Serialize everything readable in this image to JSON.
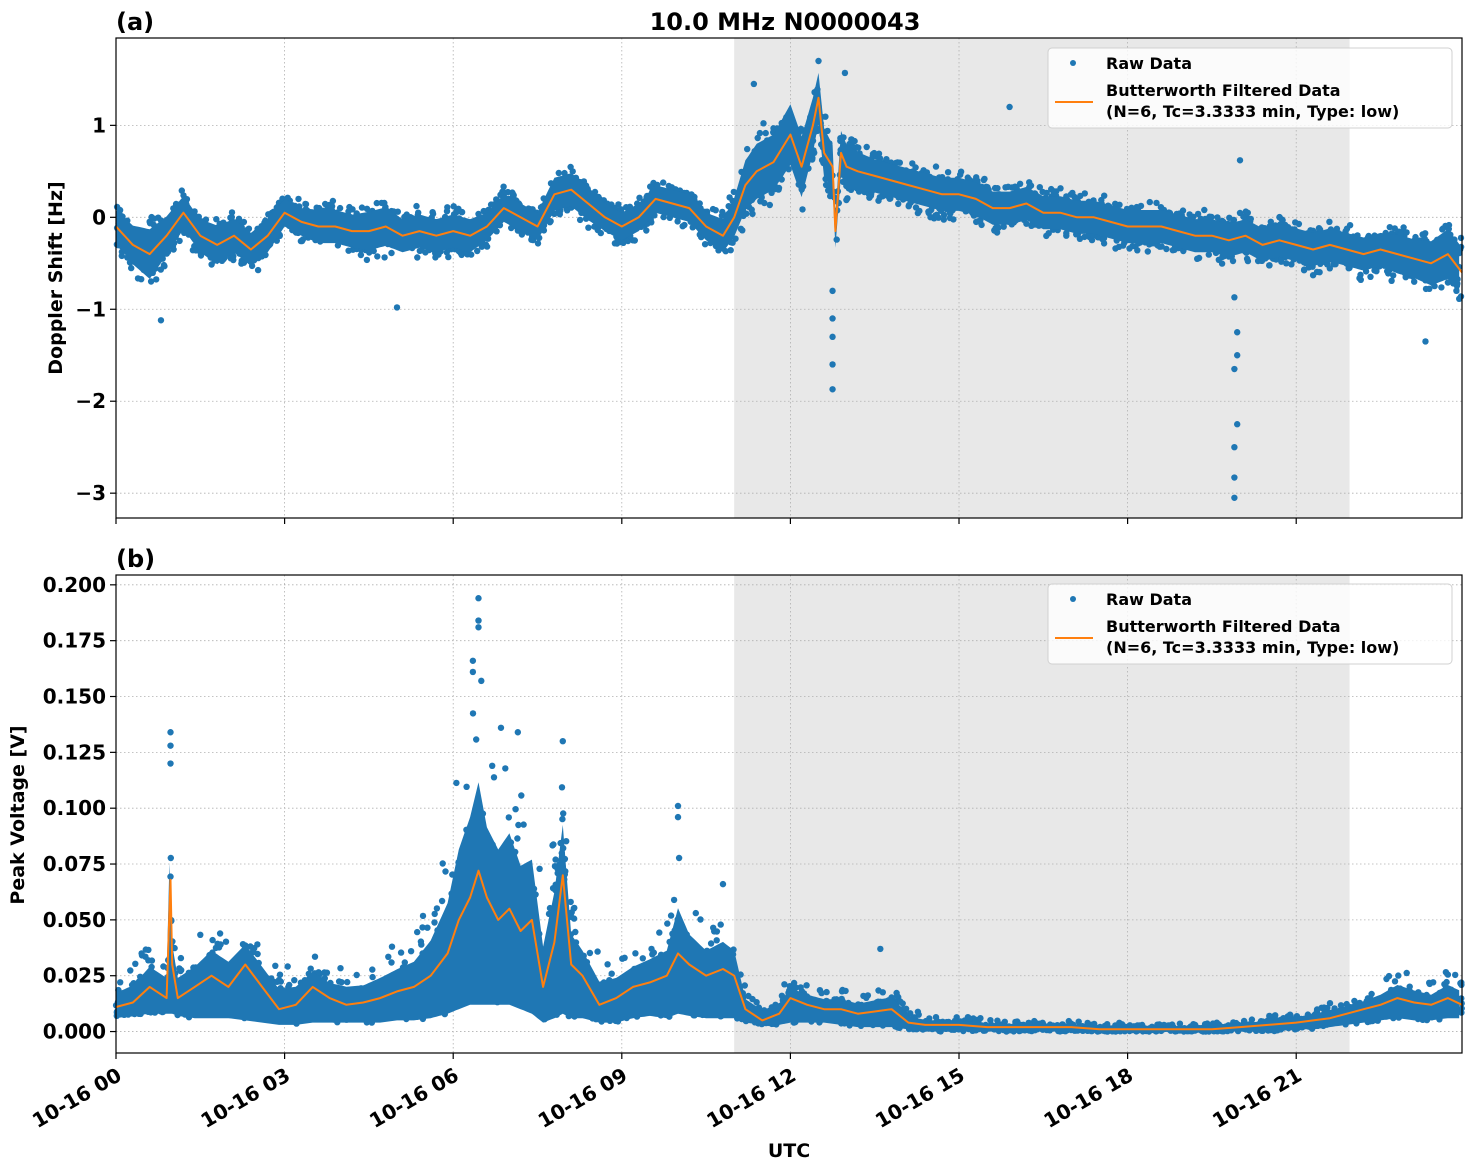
{
  "figure": {
    "title": "10.0 MHz N0000043",
    "xlabel": "UTC"
  },
  "colors": {
    "raw": "#1f77b4",
    "filtered": "#ff7f0e",
    "shade": "#e8e8e8",
    "grid": "#b0b0b0"
  },
  "chart_data": [
    {
      "type": "scatter",
      "panel_label": "(a)",
      "title": "10.0 MHz N0000043",
      "ylabel": "Doppler Shift [Hz]",
      "xlabel": "",
      "xlim_hours": [
        0,
        23.95
      ],
      "ylim": [
        -3.27,
        1.95
      ],
      "yticks": [
        1,
        0,
        -1,
        -2,
        -3
      ],
      "ytick_labels": [
        "1",
        "0",
        "−1",
        "−2",
        "−3"
      ],
      "xticks_hours": [
        0,
        3,
        6,
        9,
        12,
        15,
        18,
        21
      ],
      "grid": true,
      "shaded_span_hours": [
        11.0,
        21.95
      ],
      "legend": {
        "position": "top-right",
        "entries": [
          "Raw Data",
          "Butterworth Filtered Data",
          "(N=6, Tc=3.3333 min, Type: low)"
        ]
      },
      "series": [
        {
          "name": "Butterworth Filtered Data",
          "kind": "line",
          "x_hours": [
            0,
            0.3,
            0.6,
            0.9,
            1.2,
            1.5,
            1.8,
            2.1,
            2.4,
            2.7,
            3.0,
            3.3,
            3.6,
            3.9,
            4.2,
            4.5,
            4.8,
            5.1,
            5.4,
            5.7,
            6.0,
            6.3,
            6.6,
            6.9,
            7.2,
            7.5,
            7.8,
            8.1,
            8.4,
            8.7,
            9.0,
            9.3,
            9.6,
            9.9,
            10.2,
            10.5,
            10.8,
            11.0,
            11.2,
            11.4,
            11.7,
            12.0,
            12.2,
            12.4,
            12.5,
            12.6,
            12.75,
            12.8,
            12.9,
            13.0,
            13.2,
            13.5,
            13.8,
            14.1,
            14.4,
            14.7,
            15.0,
            15.3,
            15.6,
            15.9,
            16.2,
            16.5,
            16.8,
            17.1,
            17.4,
            17.7,
            18.0,
            18.3,
            18.6,
            18.9,
            19.2,
            19.5,
            19.8,
            20.1,
            20.4,
            20.7,
            21.0,
            21.3,
            21.6,
            21.9,
            22.2,
            22.5,
            22.8,
            23.1,
            23.4,
            23.7,
            23.95
          ],
          "y": [
            -0.1,
            -0.3,
            -0.4,
            -0.2,
            0.05,
            -0.2,
            -0.3,
            -0.2,
            -0.35,
            -0.2,
            0.05,
            -0.05,
            -0.1,
            -0.1,
            -0.15,
            -0.15,
            -0.1,
            -0.2,
            -0.15,
            -0.2,
            -0.15,
            -0.2,
            -0.1,
            0.1,
            0.0,
            -0.1,
            0.25,
            0.3,
            0.15,
            0.0,
            -0.1,
            0.0,
            0.2,
            0.15,
            0.1,
            -0.1,
            -0.2,
            0.0,
            0.35,
            0.5,
            0.6,
            0.9,
            0.55,
            1.0,
            1.3,
            0.7,
            0.55,
            -0.15,
            0.7,
            0.55,
            0.5,
            0.45,
            0.4,
            0.35,
            0.3,
            0.25,
            0.25,
            0.2,
            0.1,
            0.1,
            0.15,
            0.05,
            0.05,
            0.0,
            0.0,
            -0.05,
            -0.1,
            -0.1,
            -0.1,
            -0.15,
            -0.2,
            -0.2,
            -0.25,
            -0.2,
            -0.3,
            -0.25,
            -0.3,
            -0.35,
            -0.3,
            -0.35,
            -0.4,
            -0.35,
            -0.4,
            -0.45,
            -0.5,
            -0.4,
            -0.6
          ]
        },
        {
          "name": "Raw Data",
          "kind": "scatter",
          "band_halfwidth": [
            0.3,
            0.35,
            0.45,
            0.35,
            0.3,
            0.3,
            0.35,
            0.3,
            0.3,
            0.3,
            0.25,
            0.25,
            0.3,
            0.3,
            0.3,
            0.35,
            0.35,
            0.3,
            0.3,
            0.3,
            0.3,
            0.3,
            0.25,
            0.25,
            0.25,
            0.25,
            0.3,
            0.3,
            0.3,
            0.25,
            0.25,
            0.25,
            0.25,
            0.25,
            0.25,
            0.25,
            0.3,
            0.35,
            0.45,
            0.5,
            0.5,
            0.55,
            0.55,
            0.5,
            0.45,
            0.45,
            0.4,
            0.3,
            0.4,
            0.4,
            0.35,
            0.3,
            0.3,
            0.3,
            0.3,
            0.3,
            0.3,
            0.3,
            0.3,
            0.3,
            0.3,
            0.3,
            0.3,
            0.3,
            0.3,
            0.3,
            0.3,
            0.3,
            0.3,
            0.3,
            0.3,
            0.3,
            0.3,
            0.3,
            0.3,
            0.3,
            0.3,
            0.3,
            0.3,
            0.3,
            0.3,
            0.3,
            0.35,
            0.35,
            0.4,
            0.45,
            0.45
          ],
          "outliers": [
            {
              "x_hours": 12.75,
              "y": -1.87
            },
            {
              "x_hours": 12.75,
              "y": -1.6
            },
            {
              "x_hours": 12.75,
              "y": -1.3
            },
            {
              "x_hours": 12.75,
              "y": -1.1
            },
            {
              "x_hours": 12.75,
              "y": -0.8
            },
            {
              "x_hours": 12.5,
              "y": 1.7
            },
            {
              "x_hours": 11.35,
              "y": 1.45
            },
            {
              "x_hours": 12.97,
              "y": 1.57
            },
            {
              "x_hours": 15.9,
              "y": 1.2
            },
            {
              "x_hours": 19.9,
              "y": -3.05
            },
            {
              "x_hours": 19.9,
              "y": -2.83
            },
            {
              "x_hours": 19.9,
              "y": -2.5
            },
            {
              "x_hours": 19.95,
              "y": -2.25
            },
            {
              "x_hours": 19.9,
              "y": -1.65
            },
            {
              "x_hours": 19.95,
              "y": -1.5
            },
            {
              "x_hours": 19.95,
              "y": -1.25
            },
            {
              "x_hours": 19.9,
              "y": -0.87
            },
            {
              "x_hours": 20.0,
              "y": 0.62
            },
            {
              "x_hours": 23.3,
              "y": -1.35
            },
            {
              "x_hours": 5.0,
              "y": -0.98
            },
            {
              "x_hours": 0.8,
              "y": -1.12
            }
          ]
        }
      ]
    },
    {
      "type": "scatter",
      "panel_label": "(b)",
      "title": "",
      "ylabel": "Peak Voltage [V]",
      "xlabel": "UTC",
      "xlim_hours": [
        0,
        23.95
      ],
      "ylim": [
        -0.0096,
        0.2044
      ],
      "yticks": [
        0.2,
        0.175,
        0.15,
        0.125,
        0.1,
        0.075,
        0.05,
        0.025,
        0.0
      ],
      "ytick_labels": [
        "0.200",
        "0.175",
        "0.150",
        "0.125",
        "0.100",
        "0.075",
        "0.050",
        "0.025",
        "0.000"
      ],
      "xticks_hours": [
        0,
        3,
        6,
        9,
        12,
        15,
        18,
        21
      ],
      "xtick_labels": [
        "10-16 00",
        "10-16 03",
        "10-16 06",
        "10-16 09",
        "10-16 12",
        "10-16 15",
        "10-16 18",
        "10-16 21"
      ],
      "grid": true,
      "shaded_span_hours": [
        11.0,
        21.95
      ],
      "legend": {
        "position": "top-right",
        "entries": [
          "Raw Data",
          "Butterworth Filtered Data",
          "(N=6, Tc=3.3333 min, Type: low)"
        ]
      },
      "series": [
        {
          "name": "Butterworth Filtered Data",
          "kind": "line",
          "x_hours": [
            0,
            0.3,
            0.6,
            0.9,
            0.97,
            1.0,
            1.1,
            1.4,
            1.7,
            2.0,
            2.3,
            2.6,
            2.9,
            3.2,
            3.5,
            3.8,
            4.1,
            4.4,
            4.7,
            5.0,
            5.3,
            5.6,
            5.9,
            6.1,
            6.3,
            6.45,
            6.6,
            6.8,
            7.0,
            7.2,
            7.4,
            7.6,
            7.8,
            7.95,
            8.1,
            8.3,
            8.6,
            8.9,
            9.2,
            9.5,
            9.8,
            10.0,
            10.2,
            10.5,
            10.8,
            11.0,
            11.2,
            11.5,
            11.8,
            12.0,
            12.3,
            12.6,
            12.9,
            13.2,
            13.5,
            13.8,
            14.1,
            14.4,
            14.7,
            15.0,
            15.5,
            16.0,
            16.5,
            17.0,
            17.5,
            18.0,
            18.5,
            19.0,
            19.5,
            20.0,
            20.5,
            21.0,
            21.3,
            21.6,
            21.9,
            22.2,
            22.5,
            22.8,
            23.1,
            23.4,
            23.7,
            23.95
          ],
          "y": [
            0.011,
            0.013,
            0.02,
            0.015,
            0.068,
            0.03,
            0.015,
            0.02,
            0.025,
            0.02,
            0.03,
            0.02,
            0.01,
            0.012,
            0.02,
            0.015,
            0.012,
            0.013,
            0.015,
            0.018,
            0.02,
            0.025,
            0.035,
            0.05,
            0.06,
            0.072,
            0.06,
            0.05,
            0.055,
            0.045,
            0.05,
            0.02,
            0.04,
            0.07,
            0.03,
            0.025,
            0.012,
            0.015,
            0.02,
            0.022,
            0.025,
            0.035,
            0.03,
            0.025,
            0.028,
            0.025,
            0.01,
            0.005,
            0.008,
            0.015,
            0.012,
            0.01,
            0.01,
            0.008,
            0.009,
            0.01,
            0.004,
            0.003,
            0.003,
            0.003,
            0.002,
            0.002,
            0.002,
            0.002,
            0.001,
            0.001,
            0.001,
            0.001,
            0.001,
            0.002,
            0.003,
            0.004,
            0.005,
            0.006,
            0.008,
            0.01,
            0.012,
            0.015,
            0.013,
            0.012,
            0.015,
            0.012
          ],
          "band_upper": [
            0.025,
            0.03,
            0.04,
            0.035,
            0.13,
            0.05,
            0.035,
            0.04,
            0.05,
            0.045,
            0.05,
            0.04,
            0.03,
            0.03,
            0.035,
            0.03,
            0.03,
            0.03,
            0.035,
            0.04,
            0.045,
            0.06,
            0.085,
            0.12,
            0.14,
            0.16,
            0.13,
            0.12,
            0.13,
            0.11,
            0.11,
            0.06,
            0.09,
            0.12,
            0.06,
            0.05,
            0.035,
            0.035,
            0.04,
            0.045,
            0.05,
            0.08,
            0.06,
            0.05,
            0.055,
            0.05,
            0.02,
            0.015,
            0.018,
            0.025,
            0.022,
            0.02,
            0.02,
            0.018,
            0.02,
            0.022,
            0.01,
            0.008,
            0.007,
            0.007,
            0.006,
            0.005,
            0.005,
            0.005,
            0.004,
            0.004,
            0.004,
            0.004,
            0.004,
            0.005,
            0.007,
            0.009,
            0.012,
            0.013,
            0.016,
            0.018,
            0.022,
            0.028,
            0.025,
            0.022,
            0.028,
            0.025
          ],
          "band_lower": [
            0.006,
            0.007,
            0.008,
            0.008,
            0.008,
            0.008,
            0.007,
            0.006,
            0.006,
            0.006,
            0.005,
            0.004,
            0.003,
            0.003,
            0.004,
            0.004,
            0.004,
            0.004,
            0.004,
            0.005,
            0.005,
            0.006,
            0.008,
            0.01,
            0.012,
            0.012,
            0.012,
            0.012,
            0.012,
            0.01,
            0.008,
            0.004,
            0.006,
            0.008,
            0.006,
            0.006,
            0.004,
            0.004,
            0.006,
            0.007,
            0.006,
            0.008,
            0.007,
            0.006,
            0.006,
            0.006,
            0.004,
            0.003,
            0.003,
            0.004,
            0.004,
            0.004,
            0.003,
            0.002,
            0.002,
            0.002,
            0.001,
            0.0,
            0.0,
            0.0,
            0.0,
            0.0,
            0.0,
            0.0,
            0.0,
            0.0,
            0.0,
            0.0,
            0.0,
            0.0,
            0.0,
            0.001,
            0.001,
            0.002,
            0.003,
            0.004,
            0.005,
            0.006,
            0.005,
            0.005,
            0.006,
            0.006
          ]
        },
        {
          "name": "Raw Data",
          "kind": "scatter",
          "outliers": [
            {
              "x_hours": 6.45,
              "y": 0.194
            },
            {
              "x_hours": 6.45,
              "y": 0.184
            },
            {
              "x_hours": 6.45,
              "y": 0.181
            },
            {
              "x_hours": 6.35,
              "y": 0.166
            },
            {
              "x_hours": 6.35,
              "y": 0.161
            },
            {
              "x_hours": 6.5,
              "y": 0.157
            },
            {
              "x_hours": 0.97,
              "y": 0.134
            },
            {
              "x_hours": 0.97,
              "y": 0.128
            },
            {
              "x_hours": 0.97,
              "y": 0.12
            },
            {
              "x_hours": 7.95,
              "y": 0.13
            },
            {
              "x_hours": 6.85,
              "y": 0.136
            },
            {
              "x_hours": 7.15,
              "y": 0.134
            },
            {
              "x_hours": 10.0,
              "y": 0.101
            },
            {
              "x_hours": 10.0,
              "y": 0.096
            },
            {
              "x_hours": 10.8,
              "y": 0.066
            },
            {
              "x_hours": 13.6,
              "y": 0.037
            }
          ]
        }
      ]
    }
  ]
}
